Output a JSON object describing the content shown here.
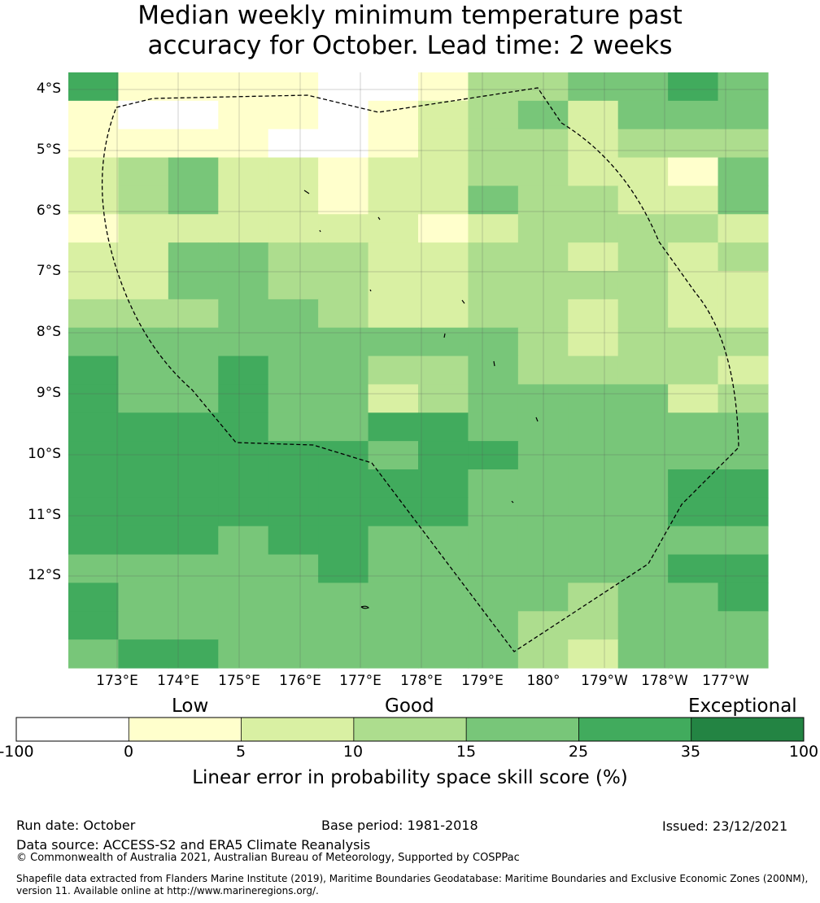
{
  "title": {
    "line1": "Median weekly minimum temperature past",
    "line2": "accuracy for October. Lead time: 2 weeks"
  },
  "map": {
    "lat_labels": [
      "4°S",
      "5°S",
      "6°S",
      "7°S",
      "8°S",
      "9°S",
      "10°S",
      "11°S",
      "12°S"
    ],
    "lon_labels": [
      "173°E",
      "174°E",
      "175°E",
      "176°E",
      "177°E",
      "178°E",
      "179°E",
      "180°",
      "179°W",
      "178°W",
      "177°W"
    ],
    "grid": [
      [
        "c5",
        "c1",
        "c1",
        "c1",
        "c1",
        "c0",
        "c0",
        "c1",
        "c3",
        "c3",
        "c4",
        "c4",
        "c5",
        "c4"
      ],
      [
        "c1",
        "c0",
        "c0",
        "c1",
        "c1",
        "c0",
        "c1",
        "c2",
        "c3",
        "c4",
        "c2",
        "c4",
        "c4",
        "c4"
      ],
      [
        "c1",
        "c1",
        "c1",
        "c1",
        "c0",
        "c0",
        "c1",
        "c2",
        "c3",
        "c3",
        "c2",
        "c3",
        "c3",
        "c3"
      ],
      [
        "c2",
        "c3",
        "c4",
        "c2",
        "c2",
        "c1",
        "c2",
        "c2",
        "c3",
        "c3",
        "c2",
        "c2",
        "c1",
        "c4"
      ],
      [
        "c2",
        "c3",
        "c4",
        "c2",
        "c2",
        "c1",
        "c2",
        "c2",
        "c4",
        "c3",
        "c3",
        "c2",
        "c2",
        "c4"
      ],
      [
        "c1",
        "c2",
        "c2",
        "c2",
        "c2",
        "c2",
        "c2",
        "c1",
        "c2",
        "c3",
        "c3",
        "c3",
        "c3",
        "c2"
      ],
      [
        "c2",
        "c2",
        "c4",
        "c4",
        "c3",
        "c3",
        "c2",
        "c2",
        "c3",
        "c3",
        "c2",
        "c3",
        "c2",
        "c3"
      ],
      [
        "c2",
        "c2",
        "c4",
        "c4",
        "c3",
        "c3",
        "c2",
        "c2",
        "c3",
        "c3",
        "c3",
        "c3",
        "c2",
        "c2"
      ],
      [
        "c3",
        "c3",
        "c3",
        "c4",
        "c4",
        "c3",
        "c2",
        "c2",
        "c3",
        "c3",
        "c2",
        "c3",
        "c2",
        "c2"
      ],
      [
        "c4",
        "c4",
        "c4",
        "c4",
        "c4",
        "c4",
        "c4",
        "c4",
        "c4",
        "c3",
        "c2",
        "c3",
        "c3",
        "c3"
      ],
      [
        "c5",
        "c4",
        "c4",
        "c5",
        "c4",
        "c4",
        "c3",
        "c3",
        "c4",
        "c3",
        "c3",
        "c3",
        "c3",
        "c2"
      ],
      [
        "c5",
        "c4",
        "c4",
        "c5",
        "c4",
        "c4",
        "c2",
        "c3",
        "c4",
        "c4",
        "c4",
        "c4",
        "c2",
        "c3"
      ],
      [
        "c5",
        "c5",
        "c5",
        "c5",
        "c4",
        "c4",
        "c5",
        "c5",
        "c4",
        "c4",
        "c4",
        "c4",
        "c4",
        "c4"
      ],
      [
        "c5",
        "c5",
        "c5",
        "c5",
        "c5",
        "c5",
        "c4",
        "c5",
        "c5",
        "c4",
        "c4",
        "c4",
        "c4",
        "c4"
      ],
      [
        "c5",
        "c5",
        "c5",
        "c5",
        "c5",
        "c5",
        "c5",
        "c5",
        "c4",
        "c4",
        "c4",
        "c4",
        "c5",
        "c5"
      ],
      [
        "c5",
        "c5",
        "c5",
        "c5",
        "c5",
        "c5",
        "c5",
        "c5",
        "c4",
        "c4",
        "c4",
        "c4",
        "c5",
        "c5"
      ],
      [
        "c5",
        "c5",
        "c5",
        "c4",
        "c5",
        "c5",
        "c4",
        "c4",
        "c4",
        "c4",
        "c4",
        "c4",
        "c4",
        "c4"
      ],
      [
        "c4",
        "c4",
        "c4",
        "c4",
        "c4",
        "c5",
        "c4",
        "c4",
        "c4",
        "c4",
        "c4",
        "c4",
        "c5",
        "c5"
      ],
      [
        "c5",
        "c4",
        "c4",
        "c4",
        "c4",
        "c4",
        "c4",
        "c4",
        "c4",
        "c4",
        "c3",
        "c4",
        "c4",
        "c5"
      ],
      [
        "c5",
        "c4",
        "c4",
        "c4",
        "c4",
        "c4",
        "c4",
        "c4",
        "c4",
        "c3",
        "c3",
        "c4",
        "c4",
        "c4"
      ],
      [
        "c4",
        "c5",
        "c5",
        "c4",
        "c4",
        "c4",
        "c4",
        "c4",
        "c4",
        "c3",
        "c2",
        "c4",
        "c4",
        "c4"
      ]
    ]
  },
  "colors": {
    "c0": "#ffffff",
    "c1": "#ffffcc",
    "c2": "#d9f0a3",
    "c3": "#addd8e",
    "c4": "#78c679",
    "c5": "#41ab5d",
    "c6": "#238443",
    "boundary": "#000000"
  },
  "colorbar": {
    "categories": [
      "Low",
      "Good",
      "Exceptional"
    ],
    "ticks": [
      "-100",
      "0",
      "5",
      "10",
      "15",
      "25",
      "35",
      "100"
    ],
    "segments": [
      "c0",
      "c1",
      "c2",
      "c3",
      "c4",
      "c5",
      "c6"
    ],
    "label": "Linear error in probability space skill score (%)"
  },
  "footer": {
    "run_date": "Run date: October",
    "base_period": "Base period: 1981-2018",
    "issued": "Issued: 23/12/2021",
    "data_source": "Data source: ACCESS-S2 and ERA5 Climate Reanalysis",
    "copyright": "© Commonwealth of Australia 2021, Australian Bureau of Meteorology, Supported by COSPPac",
    "shapefile_line1": "Shapefile data extracted from Flanders Marine Institute (2019), Maritime Boundaries Geodatabase: Maritime Boundaries and Exclusive Economic Zones (200NM),",
    "shapefile_line2": "version 11. Available online at http://www.marineregions.org/."
  }
}
